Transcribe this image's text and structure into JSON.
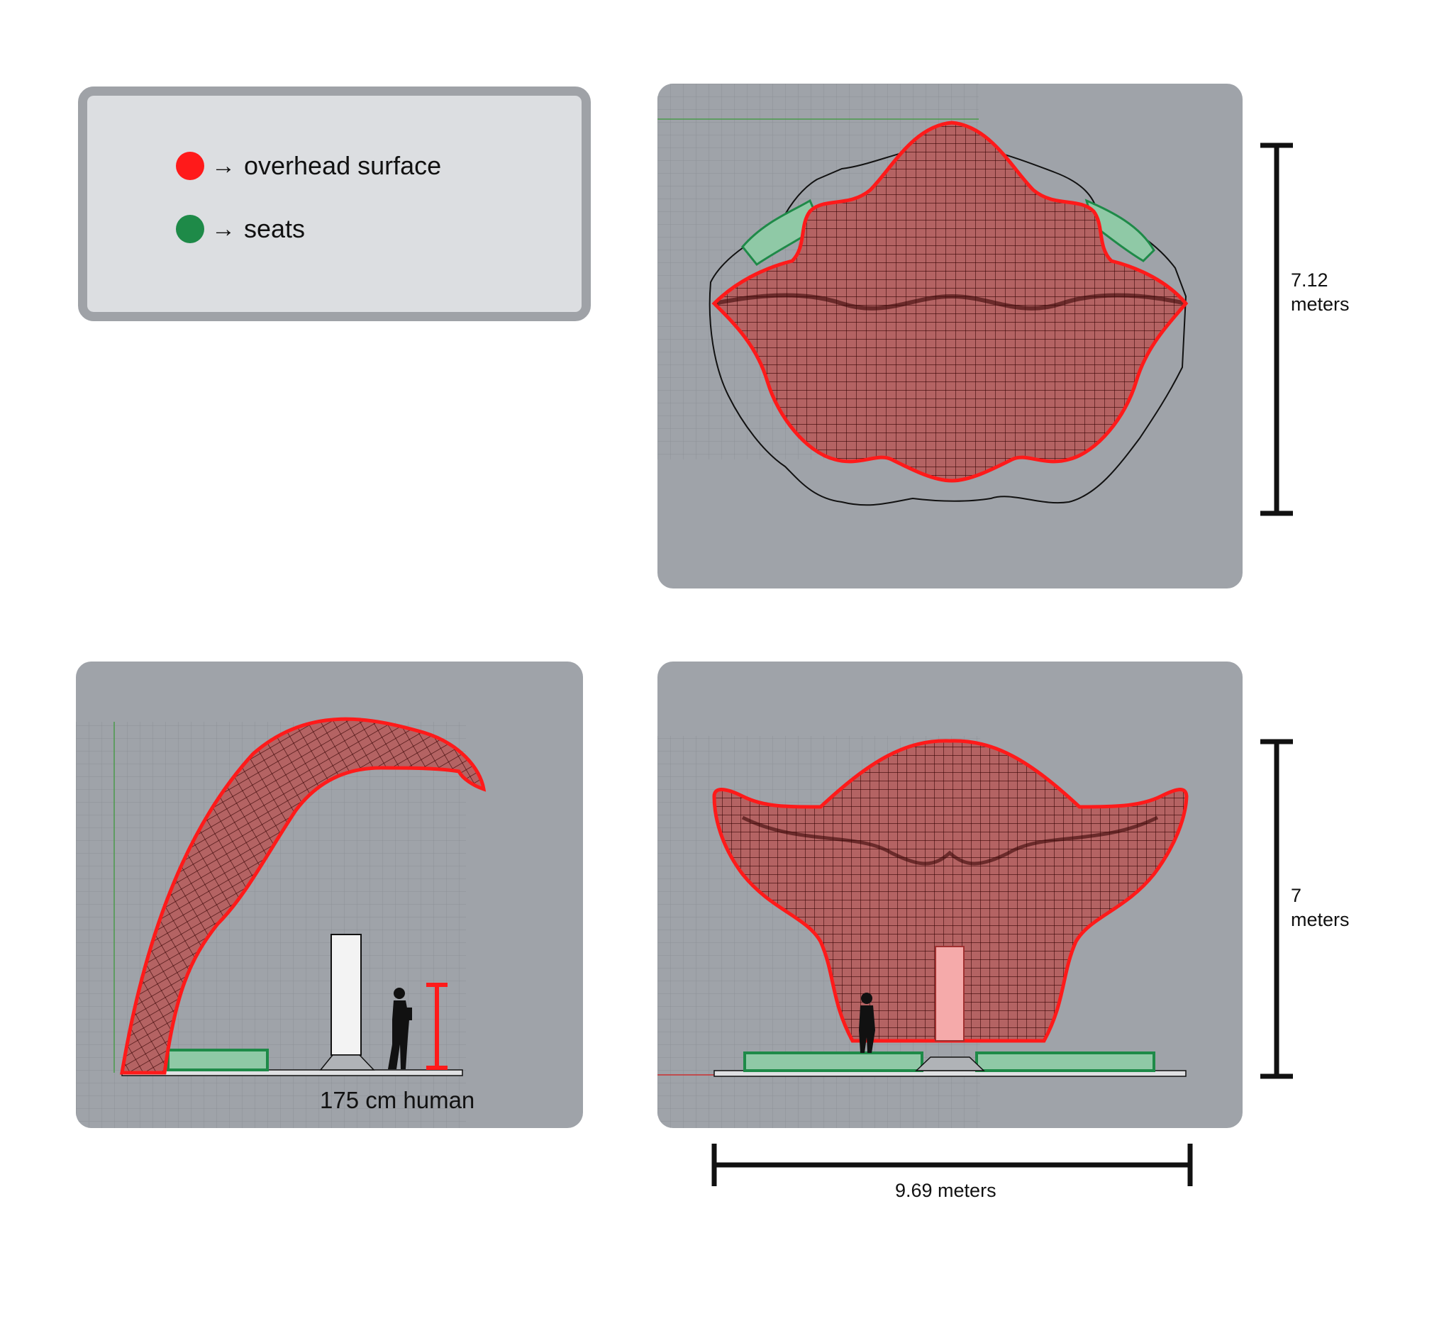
{
  "legend": {
    "items": [
      {
        "arrow": "→",
        "label": "overhead surface",
        "color": "#ff1a1a"
      },
      {
        "arrow": "→",
        "label": "seats",
        "color": "#1e8a48"
      }
    ]
  },
  "top_view": {
    "dimension_value": "7.12",
    "dimension_unit": "meters"
  },
  "side_view": {
    "human_label": "175 cm human"
  },
  "front_view": {
    "height_value": "7",
    "height_unit": "meters",
    "width_label": "9.69 meters"
  },
  "colors": {
    "overhead_outline": "#ff1a1a",
    "overhead_fill": "#7a1010",
    "seat_outline": "#1e8a48",
    "seat_fill": "#8fc9a6",
    "panel_bg": "#9fa3a9",
    "grid": "#8e9298"
  }
}
